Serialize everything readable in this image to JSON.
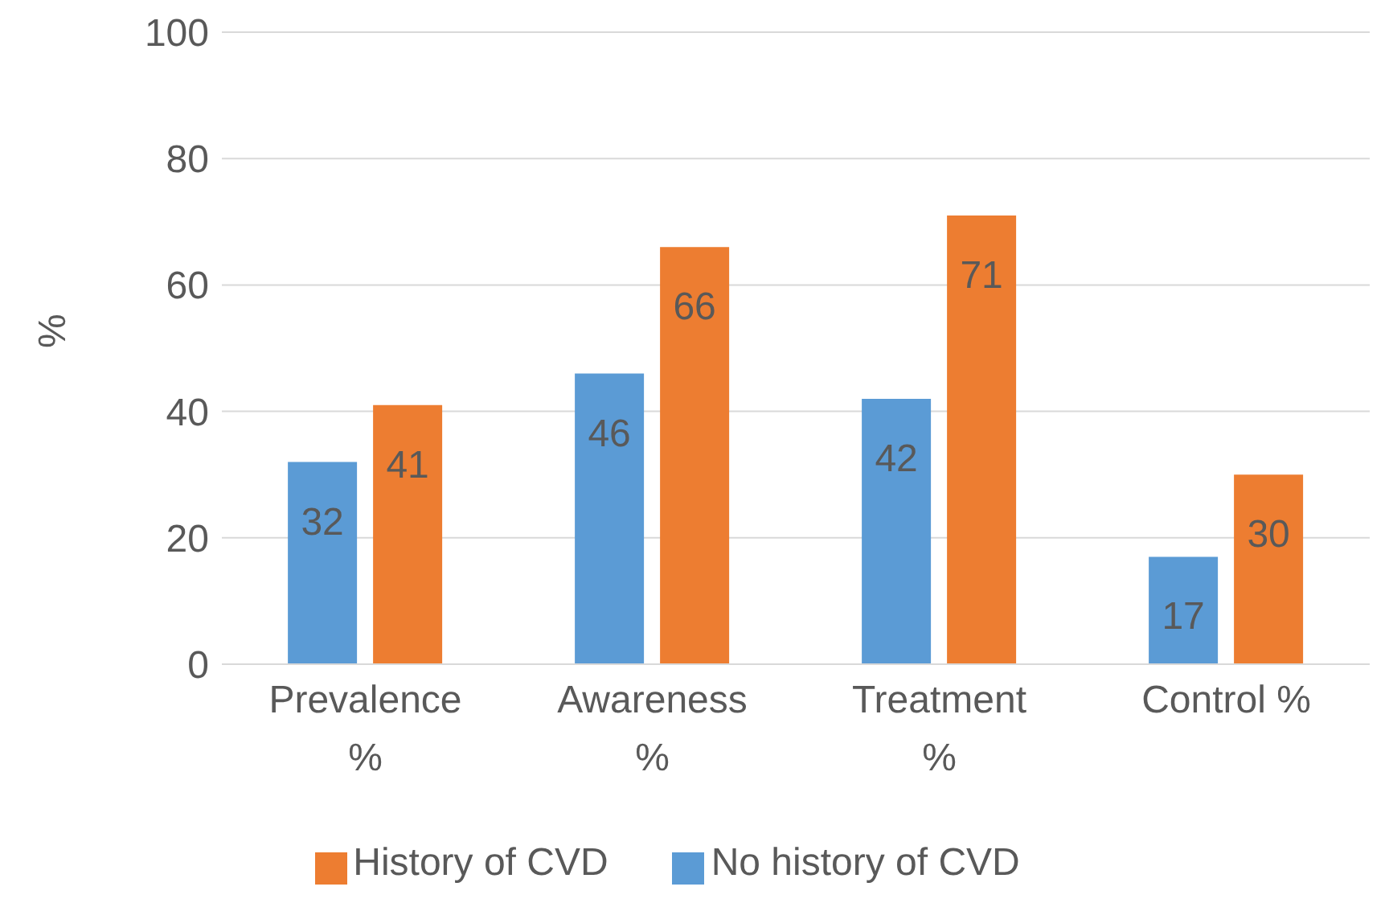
{
  "chart_data": {
    "type": "bar",
    "ylabel": "%",
    "categories": [
      "Prevalence %",
      "Awareness %",
      "Treatment %",
      "Control %"
    ],
    "series": [
      {
        "name": "No history of CVD",
        "color": "#5b9bd5",
        "values": [
          32,
          46,
          42,
          17
        ]
      },
      {
        "name": "History of CVD",
        "color": "#ed7d31",
        "values": [
          41,
          66,
          71,
          30
        ]
      }
    ],
    "ylim": [
      0,
      100
    ],
    "yticks": [
      0,
      20,
      40,
      60,
      80,
      100
    ],
    "grid": "y",
    "legend": "bottom",
    "data_labels": true
  }
}
